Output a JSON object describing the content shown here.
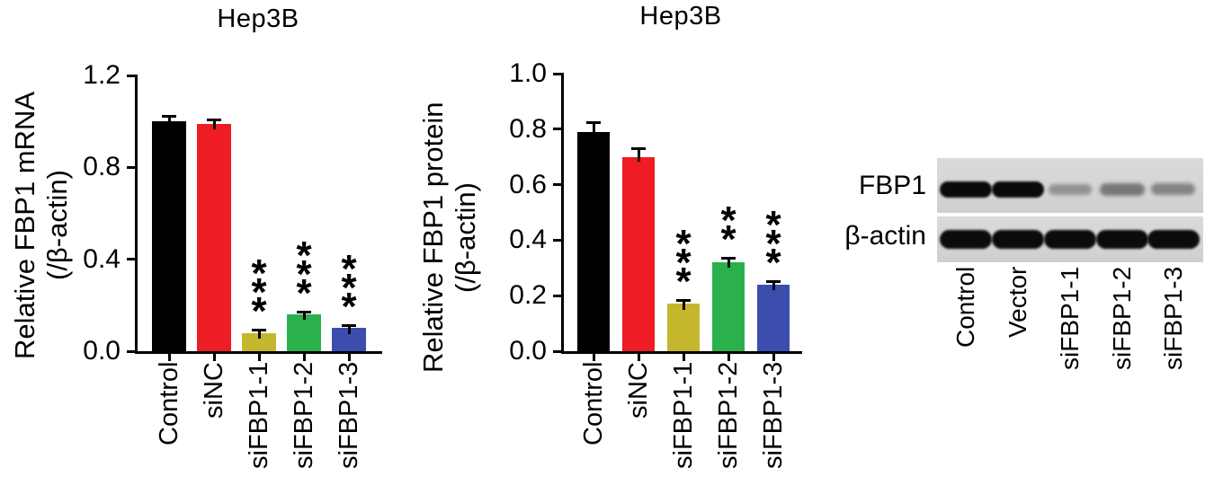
{
  "chart_data": [
    {
      "type": "bar",
      "title": "Hep3B",
      "ylabel": "Relative FBP1 mRNA (/β-actin)",
      "ylabel_lines": [
        "Relative FBP1 mRNA",
        "(/β-actin)"
      ],
      "xlabel": "",
      "categories": [
        "Control",
        "siNC",
        "siFBP1-1",
        "siFBP1-2",
        "siFBP1-3"
      ],
      "values": [
        1.0,
        0.99,
        0.08,
        0.16,
        0.1
      ],
      "errors": [
        0.025,
        0.02,
        0.015,
        0.012,
        0.015
      ],
      "significance": [
        "",
        "",
        "***",
        "***",
        "***"
      ],
      "bar_colors": [
        "#000000",
        "#ee1c25",
        "#c5b72d",
        "#2ab14c",
        "#3c4dae"
      ],
      "ylim": [
        0,
        1.2
      ],
      "yticks": [
        0,
        0.4,
        0.8,
        1.2
      ],
      "grid": false,
      "legend": "none"
    },
    {
      "type": "bar",
      "title": "Hep3B",
      "ylabel": "Relative FBP1 protein (/β-actin)",
      "ylabel_lines": [
        "Relative FBP1 protein",
        "(/β-actin)"
      ],
      "xlabel": "",
      "categories": [
        "Control",
        "siNC",
        "siFBP1-1",
        "siFBP1-2",
        "siFBP1-3"
      ],
      "values": [
        0.79,
        0.7,
        0.17,
        0.32,
        0.24
      ],
      "errors": [
        0.035,
        0.03,
        0.015,
        0.015,
        0.012
      ],
      "significance": [
        "",
        "",
        "***",
        "**",
        "***"
      ],
      "bar_colors": [
        "#000000",
        "#ee1c25",
        "#c5b72d",
        "#2ab14c",
        "#3c4dae"
      ],
      "ylim": [
        0,
        1.0
      ],
      "yticks": [
        0,
        0.2,
        0.4,
        0.6,
        0.8,
        1.0
      ],
      "grid": false,
      "legend": "none"
    }
  ],
  "blot": {
    "rows": [
      {
        "label": "FBP1",
        "band_intensities": [
          1,
          1,
          0.3,
          0.45,
          0.38
        ]
      },
      {
        "label": "β-actin",
        "band_intensities": [
          1,
          1,
          1,
          1,
          1
        ]
      }
    ],
    "lanes": [
      "Control",
      "Vector",
      "siFBP1-1",
      "siFBP1-2",
      "siFBP1-3"
    ],
    "membrane_color": "#d6d6d6"
  }
}
